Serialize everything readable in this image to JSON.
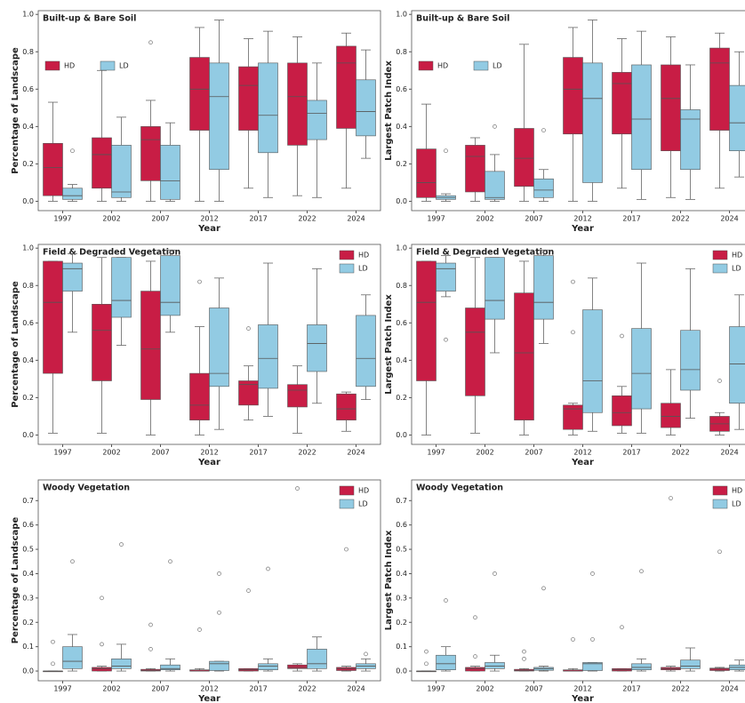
{
  "chart_data": [
    {
      "type": "boxplot",
      "title": "Built-up & Bare Soil",
      "x_label": "Year",
      "y_label": "Percentage of Landscape",
      "categories": [
        "1997",
        "2002",
        "2007",
        "2012",
        "2017",
        "2022",
        "2024"
      ],
      "ylim": [
        -0.05,
        1.02
      ],
      "yticks": [
        {
          "value": 0,
          "label": "0.0"
        },
        0.2,
        0.4,
        0.6,
        0.8,
        {
          "value": 1,
          "label": "1.0"
        }
      ],
      "legend": "upper left",
      "series": [
        {
          "name": "HD",
          "color": "#c81d45",
          "whislo": [
            0,
            0,
            0,
            0,
            0.07,
            0.03,
            0.07
          ],
          "q1": [
            0.03,
            0.07,
            0.11,
            0.38,
            0.38,
            0.3,
            0.39
          ],
          "med": [
            0.18,
            0.25,
            0.33,
            0.6,
            0.62,
            0.56,
            0.74
          ],
          "q3": [
            0.31,
            0.34,
            0.4,
            0.77,
            0.72,
            0.74,
            0.83
          ],
          "whishi": [
            0.53,
            0.7,
            0.54,
            0.93,
            0.87,
            0.88,
            0.9
          ],
          "outliers": [
            [],
            [],
            [
              0.85
            ],
            [],
            [],
            [],
            []
          ]
        },
        {
          "name": "LD",
          "color": "#92cbe3",
          "whislo": [
            0,
            0,
            0,
            0,
            0.02,
            0.02,
            0.23
          ],
          "q1": [
            0.01,
            0.02,
            0.01,
            0.17,
            0.26,
            0.33,
            0.35
          ],
          "med": [
            0.03,
            0.05,
            0.11,
            0.56,
            0.46,
            0.47,
            0.48
          ],
          "q3": [
            0.07,
            0.3,
            0.3,
            0.74,
            0.74,
            0.54,
            0.65
          ],
          "whishi": [
            0.09,
            0.45,
            0.42,
            0.97,
            0.91,
            0.74,
            0.81
          ],
          "outliers": [
            [
              0.27
            ],
            [],
            [],
            [],
            [],
            [],
            []
          ]
        }
      ]
    },
    {
      "type": "boxplot",
      "title": "Built-up & Bare Soil",
      "x_label": "Year",
      "y_label": "Largest Patch Index",
      "categories": [
        "1997",
        "2002",
        "2007",
        "2012",
        "2017",
        "2022",
        "2024"
      ],
      "ylim": [
        -0.05,
        1.02
      ],
      "yticks": [
        {
          "value": 0,
          "label": "0.0"
        },
        0.2,
        0.4,
        0.6,
        0.8,
        {
          "value": 1,
          "label": "1.0"
        }
      ],
      "legend": "upper left",
      "series": [
        {
          "name": "HD",
          "color": "#c81d45",
          "whislo": [
            0,
            0,
            0,
            0,
            0.07,
            0.02,
            0.07
          ],
          "q1": [
            0.02,
            0.05,
            0.08,
            0.36,
            0.36,
            0.27,
            0.38
          ],
          "med": [
            0.1,
            0.24,
            0.23,
            0.6,
            0.63,
            0.55,
            0.74
          ],
          "q3": [
            0.28,
            0.3,
            0.39,
            0.77,
            0.69,
            0.73,
            0.82
          ],
          "whishi": [
            0.52,
            0.34,
            0.84,
            0.93,
            0.87,
            0.88,
            0.9
          ],
          "outliers": [
            [],
            [],
            [],
            [],
            [],
            [],
            []
          ]
        },
        {
          "name": "LD",
          "color": "#92cbe3",
          "whislo": [
            0,
            0,
            0,
            0,
            0.01,
            0.01,
            0.13
          ],
          "q1": [
            0.01,
            0.01,
            0.02,
            0.1,
            0.17,
            0.17,
            0.27
          ],
          "med": [
            0.02,
            0.02,
            0.06,
            0.55,
            0.44,
            0.44,
            0.42
          ],
          "q3": [
            0.03,
            0.16,
            0.12,
            0.74,
            0.73,
            0.49,
            0.62
          ],
          "whishi": [
            0.04,
            0.25,
            0.17,
            0.97,
            0.91,
            0.73,
            0.8
          ],
          "outliers": [
            [
              0.27
            ],
            [
              0.4
            ],
            [
              0.38
            ],
            [],
            [],
            [],
            []
          ]
        }
      ]
    },
    {
      "type": "boxplot",
      "title": "Field & Degraded Vegetation",
      "x_label": "Year",
      "y_label": "Percentage of Landscape",
      "categories": [
        "1997",
        "2002",
        "2007",
        "2012",
        "2017",
        "2022",
        "2024"
      ],
      "ylim": [
        -0.05,
        1.02
      ],
      "yticks": [
        {
          "value": 0,
          "label": "0.0"
        },
        0.2,
        0.4,
        0.6,
        0.8,
        {
          "value": 1,
          "label": "1.0"
        }
      ],
      "legend": "upper right",
      "series": [
        {
          "name": "HD",
          "color": "#c81d45",
          "whislo": [
            0.01,
            0.01,
            0,
            0,
            0.08,
            0.01,
            0.02
          ],
          "q1": [
            0.33,
            0.29,
            0.19,
            0.08,
            0.16,
            0.15,
            0.08
          ],
          "med": [
            0.71,
            0.56,
            0.46,
            0.16,
            0.27,
            0.24,
            0.14
          ],
          "q3": [
            0.93,
            0.7,
            0.77,
            0.33,
            0.29,
            0.27,
            0.22
          ],
          "whishi": [
            0.93,
            0.95,
            0.93,
            0.58,
            0.37,
            0.37,
            0.23
          ],
          "outliers": [
            [],
            [],
            [],
            [
              0.82
            ],
            [
              0.57
            ],
            [],
            []
          ]
        },
        {
          "name": "LD",
          "color": "#92cbe3",
          "whislo": [
            0.55,
            0.48,
            0.55,
            0.03,
            0.1,
            0.17,
            0.19
          ],
          "q1": [
            0.77,
            0.63,
            0.64,
            0.26,
            0.25,
            0.34,
            0.26
          ],
          "med": [
            0.89,
            0.72,
            0.71,
            0.33,
            0.41,
            0.49,
            0.41
          ],
          "q3": [
            0.92,
            0.95,
            0.96,
            0.68,
            0.59,
            0.59,
            0.64
          ],
          "whishi": [
            0.97,
            0.95,
            0.99,
            0.84,
            0.92,
            0.89,
            0.75
          ],
          "outliers": [
            [],
            [],
            [],
            [],
            [],
            [],
            []
          ]
        }
      ]
    },
    {
      "type": "boxplot",
      "title": "Field & Degraded Vegetation",
      "x_label": "Year",
      "y_label": "Largest Patch Index",
      "categories": [
        "1997",
        "2002",
        "2007",
        "2012",
        "2017",
        "2022",
        "2024"
      ],
      "ylim": [
        -0.05,
        1.02
      ],
      "yticks": [
        {
          "value": 0,
          "label": "0.0"
        },
        0.2,
        0.4,
        0.6,
        0.8,
        {
          "value": 1,
          "label": "1.0"
        }
      ],
      "legend": "upper right",
      "series": [
        {
          "name": "HD",
          "color": "#c81d45",
          "whislo": [
            0,
            0.01,
            0,
            0,
            0.01,
            0,
            0
          ],
          "q1": [
            0.29,
            0.21,
            0.08,
            0.03,
            0.05,
            0.04,
            0.02
          ],
          "med": [
            0.71,
            0.55,
            0.44,
            0.14,
            0.12,
            0.1,
            0.06
          ],
          "q3": [
            0.93,
            0.68,
            0.76,
            0.16,
            0.21,
            0.17,
            0.1
          ],
          "whishi": [
            0.93,
            0.95,
            0.93,
            0.17,
            0.26,
            0.35,
            0.12
          ],
          "outliers": [
            [],
            [],
            [],
            [
              0.55,
              0.82
            ],
            [
              0.53
            ],
            [],
            [
              0.29
            ]
          ]
        },
        {
          "name": "LD",
          "color": "#92cbe3",
          "whislo": [
            0.74,
            0.44,
            0.49,
            0.02,
            0.01,
            0.09,
            0.03
          ],
          "q1": [
            0.77,
            0.62,
            0.62,
            0.12,
            0.14,
            0.24,
            0.17
          ],
          "med": [
            0.89,
            0.72,
            0.71,
            0.29,
            0.33,
            0.35,
            0.38
          ],
          "q3": [
            0.92,
            0.95,
            0.96,
            0.67,
            0.57,
            0.56,
            0.58
          ],
          "whishi": [
            0.96,
            0.95,
            0.99,
            0.84,
            0.92,
            0.89,
            0.75
          ],
          "outliers": [
            [
              0.51
            ],
            [],
            [],
            [],
            [],
            [],
            []
          ]
        }
      ]
    },
    {
      "type": "boxplot",
      "title": "Woody Vegetation",
      "x_label": "Year",
      "y_label": "Percentage of Landscape",
      "categories": [
        "1997",
        "2002",
        "2007",
        "2012",
        "2017",
        "2022",
        "2024"
      ],
      "ylim": [
        -0.04,
        0.785
      ],
      "yticks": [
        {
          "value": 0,
          "label": "0.0"
        },
        0.1,
        0.2,
        0.3,
        0.4,
        0.5,
        0.6,
        0.7
      ],
      "legend": "upper right",
      "series": [
        {
          "name": "HD",
          "color": "#c81d45",
          "whislo": [
            0,
            0,
            0,
            0,
            0,
            0,
            0
          ],
          "q1": [
            0,
            0,
            0,
            0,
            0,
            0.01,
            0.002
          ],
          "med": [
            0,
            0.01,
            0.003,
            0,
            0.005,
            0.015,
            0.01
          ],
          "q3": [
            0,
            0.015,
            0.007,
            0.005,
            0.01,
            0.025,
            0.015
          ],
          "whishi": [
            0,
            0.02,
            0.01,
            0.01,
            0.01,
            0.03,
            0.02
          ],
          "outliers": [
            [
              0.12,
              0.03
            ],
            [
              0.3,
              0.11
            ],
            [
              0.19,
              0.09
            ],
            [
              0.17
            ],
            [
              0.33
            ],
            [
              0.75
            ],
            [
              0.5
            ]
          ]
        },
        {
          "name": "LD",
          "color": "#92cbe3",
          "whislo": [
            0,
            0,
            0,
            0,
            0,
            0,
            0
          ],
          "q1": [
            0.01,
            0.01,
            0.005,
            0.002,
            0.005,
            0.01,
            0.01
          ],
          "med": [
            0.04,
            0.02,
            0.01,
            0.03,
            0.02,
            0.03,
            0.02
          ],
          "q3": [
            0.1,
            0.05,
            0.025,
            0.04,
            0.03,
            0.09,
            0.03
          ],
          "whishi": [
            0.15,
            0.11,
            0.05,
            0.04,
            0.05,
            0.14,
            0.05
          ],
          "outliers": [
            [
              0.45
            ],
            [
              0.52
            ],
            [
              0.45
            ],
            [
              0.4,
              0.24
            ],
            [
              0.42
            ],
            [],
            [
              0.07
            ]
          ]
        }
      ]
    },
    {
      "type": "boxplot",
      "title": "Woody Vegetation",
      "x_label": "Year",
      "y_label": "Largest Patch Index",
      "categories": [
        "1997",
        "2002",
        "2007",
        "2012",
        "2017",
        "2022",
        "2024"
      ],
      "ylim": [
        -0.04,
        0.785
      ],
      "yticks": [
        {
          "value": 0,
          "label": "0.0"
        },
        0.1,
        0.2,
        0.3,
        0.4,
        0.5,
        0.6,
        0.7
      ],
      "legend": "upper right",
      "series": [
        {
          "name": "HD",
          "color": "#c81d45",
          "whislo": [
            0,
            0,
            0,
            0,
            0,
            0,
            0
          ],
          "q1": [
            0,
            0,
            0,
            0,
            0,
            0.005,
            0.002
          ],
          "med": [
            0,
            0.01,
            0.003,
            0,
            0.005,
            0.01,
            0.008
          ],
          "q3": [
            0,
            0.015,
            0.007,
            0.005,
            0.01,
            0.015,
            0.012
          ],
          "whishi": [
            0,
            0.02,
            0.01,
            0.01,
            0.01,
            0.02,
            0.015
          ],
          "outliers": [
            [
              0.08,
              0.03
            ],
            [
              0.22,
              0.06
            ],
            [
              0.08,
              0.05
            ],
            [
              0.13
            ],
            [
              0.18
            ],
            [
              0.71
            ],
            [
              0.49
            ]
          ]
        },
        {
          "name": "LD",
          "color": "#92cbe3",
          "whislo": [
            0,
            0,
            0,
            0,
            0,
            0,
            0
          ],
          "q1": [
            0.005,
            0.01,
            0.003,
            0.002,
            0.005,
            0.01,
            0.005
          ],
          "med": [
            0.03,
            0.02,
            0.01,
            0.03,
            0.015,
            0.02,
            0.015
          ],
          "q3": [
            0.065,
            0.035,
            0.015,
            0.035,
            0.03,
            0.045,
            0.025
          ],
          "whishi": [
            0.1,
            0.065,
            0.02,
            0.035,
            0.05,
            0.095,
            0.045
          ],
          "outliers": [
            [
              0.29
            ],
            [
              0.4
            ],
            [
              0.34
            ],
            [
              0.4,
              0.13
            ],
            [
              0.41
            ],
            [],
            []
          ]
        }
      ]
    }
  ]
}
